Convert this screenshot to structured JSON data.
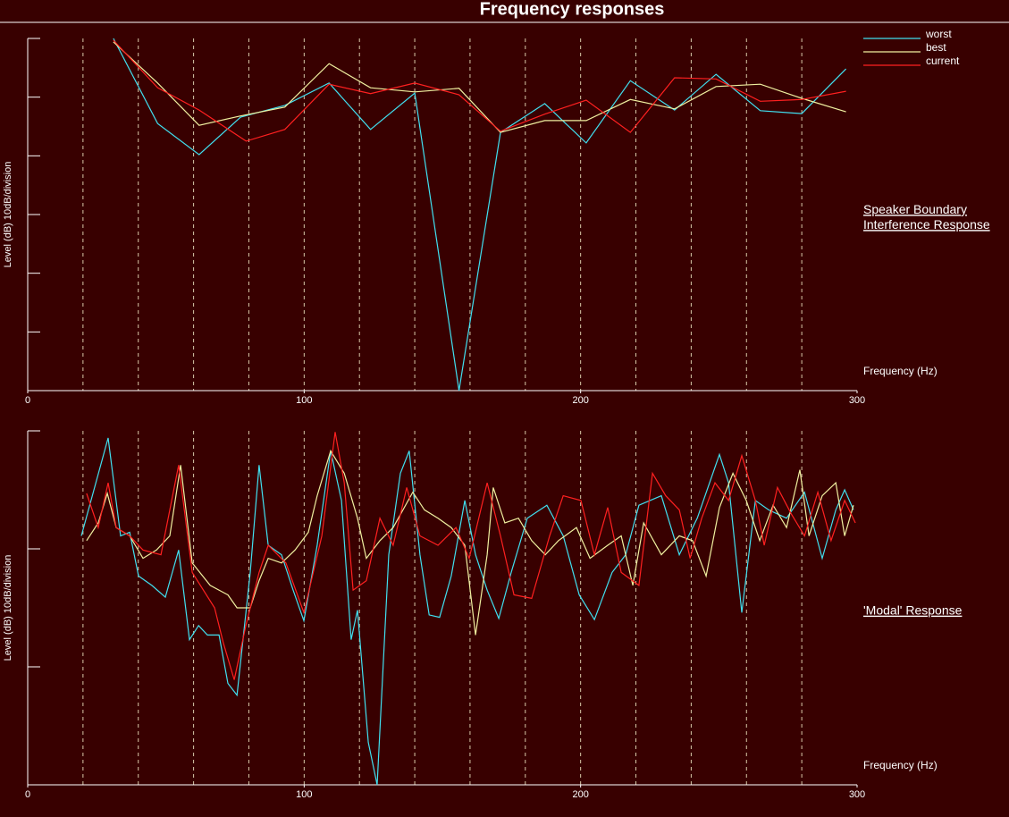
{
  "title": "Frequency responses",
  "chart_data": [
    {
      "type": "line",
      "ylabel": "Level (dB) 10dB/division",
      "xlabel": "Frequency (Hz)",
      "annotation": [
        "Speaker Boundary",
        "Interference Response"
      ],
      "xlim": [
        0,
        300
      ],
      "xticks": [
        0,
        100,
        200,
        300
      ],
      "x_grid": [
        20,
        40,
        60,
        80,
        100,
        120,
        140,
        160,
        180,
        200,
        220,
        240,
        260,
        280
      ],
      "ylim": [
        -60,
        0
      ],
      "yticks": [
        -60,
        -50,
        -40,
        -30,
        -20,
        -10,
        0
      ],
      "legend": "upper right",
      "series": [
        {
          "name": "worst",
          "color": "#40e0f0",
          "x": [
            31,
            47,
            62,
            77,
            93,
            109,
            124,
            140,
            156,
            171,
            187,
            202,
            218,
            234,
            249,
            265,
            280,
            296
          ],
          "values": [
            0,
            -14.5,
            -19.8,
            -13.4,
            -11.4,
            -7.6,
            -15.5,
            -9.3,
            -60,
            -16,
            -11.1,
            -17.8,
            -7.2,
            -12.2,
            -6.1,
            -12.3,
            -12.8,
            -5.2
          ]
        },
        {
          "name": "best",
          "color": "#f0f0a0",
          "x": [
            31,
            47,
            62,
            77,
            93,
            109,
            124,
            140,
            156,
            171,
            187,
            202,
            218,
            234,
            249,
            265,
            280,
            296
          ],
          "values": [
            -0.6,
            -7.6,
            -14.8,
            -13.2,
            -11.7,
            -4.3,
            -8.4,
            -9.1,
            -8.5,
            -16,
            -14,
            -14,
            -10.4,
            -12,
            -8.2,
            -7.8,
            -10.2,
            -12.5
          ]
        },
        {
          "name": "current",
          "color": "#ff2020",
          "x": [
            31,
            47,
            62,
            79,
            93,
            109,
            124,
            140,
            156,
            171,
            187,
            202,
            218,
            234,
            249,
            265,
            280,
            296
          ],
          "values": [
            -0.3,
            -8.4,
            -12.2,
            -17.5,
            -15.5,
            -7.8,
            -9.4,
            -7.6,
            -9.6,
            -15.8,
            -12.9,
            -10.5,
            -16,
            -6.7,
            -6.9,
            -10.7,
            -10.4,
            -9
          ]
        }
      ]
    },
    {
      "type": "line",
      "ylabel": "Level (dB) 10dB/division",
      "xlabel": "Frequency (Hz)",
      "annotation": [
        "'Modal' Response"
      ],
      "xlim": [
        0,
        300
      ],
      "xticks": [
        0,
        100,
        200,
        300
      ],
      "x_grid": [
        20,
        40,
        60,
        80,
        100,
        120,
        140,
        160,
        180,
        200,
        220,
        240,
        260,
        280
      ],
      "ylim": [
        -30,
        0
      ],
      "yticks": [
        -30,
        -20,
        -10,
        0
      ],
      "series": [
        {
          "color": "#40e0f0",
          "x": [
            19.4,
            29.1,
            33.6,
            36.9,
            40.1,
            44.9,
            49.8,
            54.6,
            58.5,
            61.8,
            65,
            69.2,
            72.4,
            75.7,
            80.5,
            83.7,
            87,
            91.8,
            96,
            99.9,
            104.7,
            109.6,
            113.5,
            117,
            119.3,
            123.2,
            126.4,
            130.6,
            134.8,
            138,
            141.9,
            145.2,
            149,
            153.2,
            158.1,
            162,
            166.2,
            170.4,
            174.9,
            180.7,
            187.8,
            193.7,
            199.5,
            205,
            211.4,
            216.3,
            221.1,
            229.2,
            235.7,
            242.2,
            250.2,
            253.5,
            258.3,
            263.2,
            268,
            274.5,
            281,
            287.4,
            292.3,
            295.5,
            298.7
          ],
          "values": [
            -8.9,
            -0.6,
            -8.9,
            -8.6,
            -12.3,
            -13.1,
            -14.1,
            -10.1,
            -17.7,
            -16.5,
            -17.3,
            -17.3,
            -21.4,
            -22.4,
            -12,
            -2.9,
            -9.7,
            -10.5,
            -13.5,
            -16.1,
            -9.7,
            -1.7,
            -5.9,
            -17.7,
            -15.2,
            -26.4,
            -30,
            -10.5,
            -3.6,
            -1.7,
            -10.5,
            -15.6,
            -15.8,
            -12.3,
            -5.9,
            -10.5,
            -13.5,
            -15.9,
            -12,
            -7.4,
            -6.3,
            -8.9,
            -13.9,
            -16,
            -12,
            -10.5,
            -6.3,
            -5.5,
            -10.5,
            -7.4,
            -2,
            -4.4,
            -15.4,
            -5.9,
            -6.7,
            -7.4,
            -5.2,
            -10.8,
            -6.7,
            -5,
            -6.7
          ]
        },
        {
          "color": "#f0f0a0",
          "x": [
            21.3,
            25.5,
            28.8,
            32,
            36.9,
            41.7,
            46.6,
            51.4,
            55.3,
            59.5,
            66,
            72.4,
            75.7,
            80.5,
            83.7,
            87,
            91.8,
            96.7,
            101.5,
            104.7,
            109.6,
            114.5,
            119.3,
            122.5,
            127.4,
            132.2,
            139.3,
            143.5,
            148.4,
            153.2,
            158.1,
            162,
            166.2,
            168.4,
            172.6,
            177.5,
            182.3,
            187.2,
            192,
            198.5,
            203.4,
            209.8,
            214.7,
            218.9,
            222.8,
            229.2,
            235.7,
            240.5,
            245.4,
            250.2,
            255.1,
            259.9,
            264.8,
            269.6,
            274.5,
            279.3,
            282.6,
            287.4,
            292.3,
            295.5,
            298.7
          ],
          "values": [
            -9.3,
            -7.8,
            -5.3,
            -8.2,
            -8.9,
            -10.8,
            -10.1,
            -8.9,
            -2.9,
            -11.2,
            -13.1,
            -13.9,
            -15,
            -15,
            -12.7,
            -10.8,
            -11.2,
            -10.1,
            -8.6,
            -5.5,
            -1.7,
            -3.6,
            -7.4,
            -10.8,
            -9.3,
            -8.2,
            -5.2,
            -6.7,
            -7.4,
            -8.2,
            -9.7,
            -17.3,
            -10.5,
            -4.8,
            -7.8,
            -7.4,
            -9.3,
            -10.5,
            -9.3,
            -8.2,
            -10.8,
            -9.7,
            -8.9,
            -13.1,
            -7.8,
            -10.5,
            -8.9,
            -9.3,
            -12.3,
            -6.5,
            -3.6,
            -5.9,
            -9.3,
            -6.3,
            -8.2,
            -3.3,
            -8.9,
            -5.5,
            -4.4,
            -8.9,
            -6.3
          ]
        },
        {
          "color": "#ff2020",
          "x": [
            21.3,
            25.5,
            29.1,
            32,
            36.9,
            41.7,
            48.2,
            54.6,
            59.5,
            67.6,
            70.8,
            74.7,
            78.9,
            83.7,
            87,
            93.4,
            99.9,
            106.4,
            111.2,
            114.5,
            117.7,
            122.5,
            127.4,
            132.2,
            137.1,
            141.9,
            148.4,
            154.9,
            159.7,
            166.2,
            171,
            175.9,
            182.3,
            188.8,
            193.7,
            200.1,
            205,
            209.8,
            214.7,
            221.1,
            226,
            230.8,
            235.7,
            239.6,
            243.8,
            248.6,
            253.5,
            258.3,
            263.2,
            266.4,
            271.2,
            276.1,
            281,
            285.8,
            290.6,
            295.5,
            299.4
          ],
          "values": [
            -5.3,
            -8.2,
            -4.4,
            -8.2,
            -8.9,
            -10.1,
            -10.5,
            -2.9,
            -12,
            -15,
            -18,
            -21.1,
            -16.5,
            -12,
            -9.7,
            -11.2,
            -15.4,
            -8.9,
            -0.1,
            -4.4,
            -13.5,
            -12.7,
            -7.4,
            -9.7,
            -4.8,
            -8.9,
            -9.7,
            -8.2,
            -10.8,
            -4.4,
            -8.9,
            -13.9,
            -14.2,
            -8.9,
            -5.5,
            -5.9,
            -10.5,
            -6.5,
            -12,
            -13.1,
            -3.6,
            -5.5,
            -6.7,
            -10.8,
            -7.4,
            -4.4,
            -5.9,
            -2.1,
            -5.9,
            -9.7,
            -4.8,
            -7,
            -8.9,
            -5.2,
            -9.3,
            -5.9,
            -7.8
          ]
        }
      ]
    }
  ]
}
